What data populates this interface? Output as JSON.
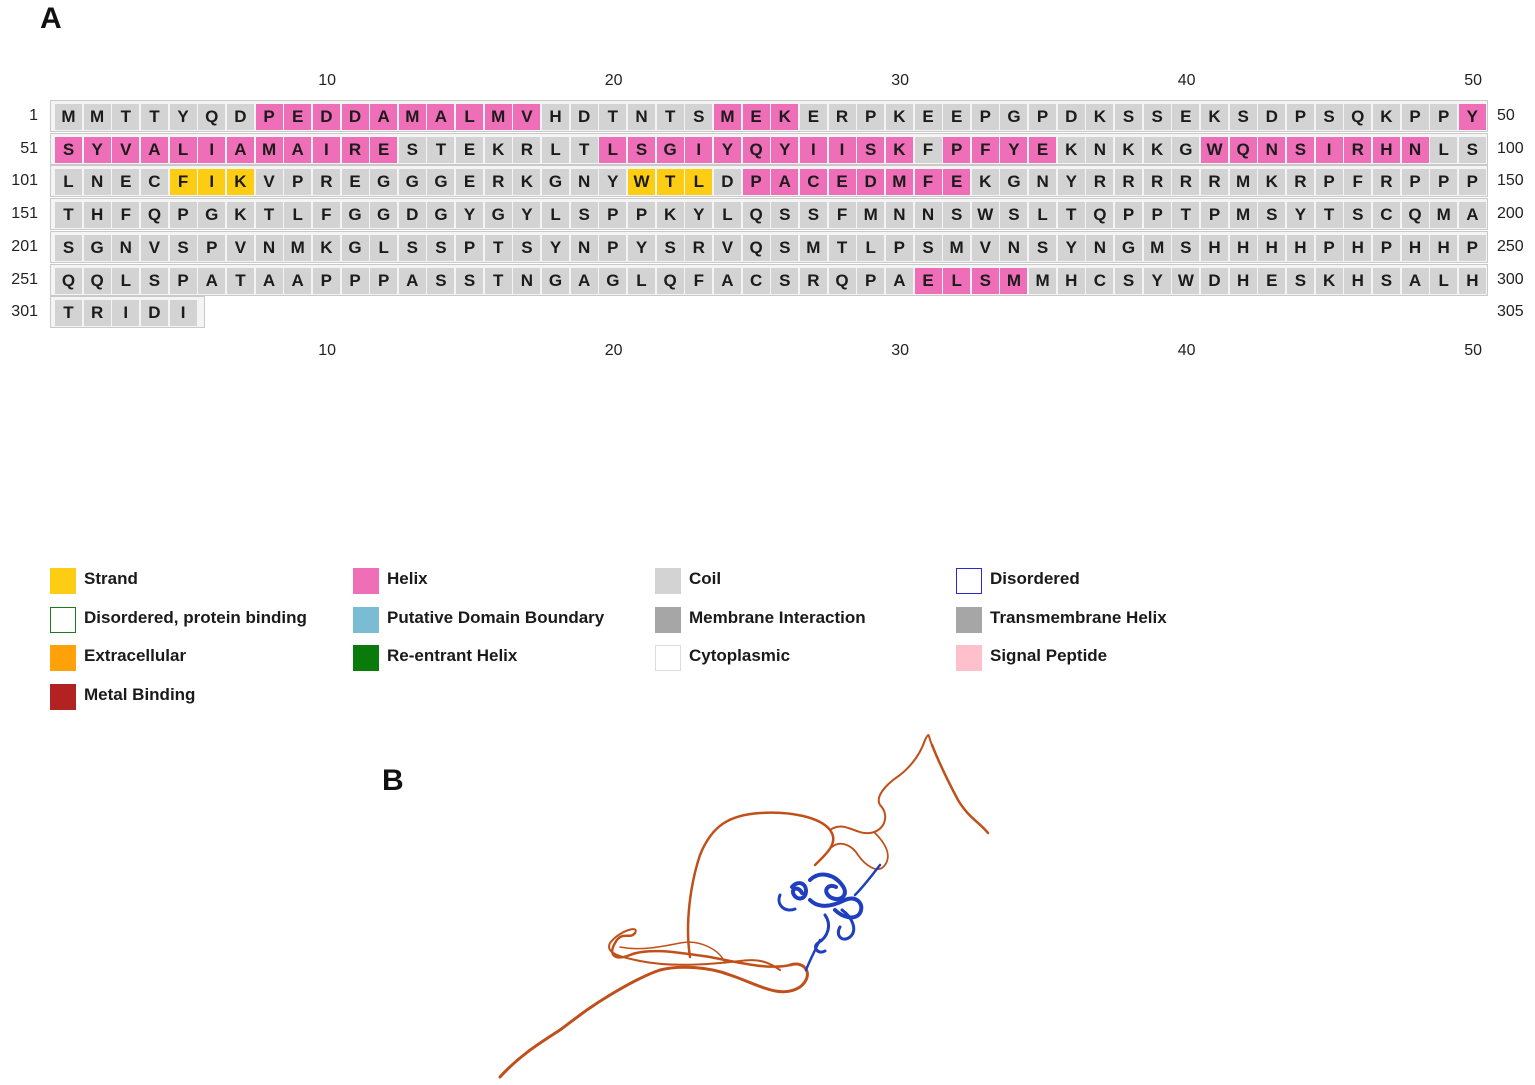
{
  "panel_a_label": "A",
  "panel_b_label": "B",
  "tick_labels": [
    "10",
    "20",
    "30",
    "40",
    "50"
  ],
  "rows": [
    {
      "start": "1",
      "end": "50",
      "seq": "MMTTYQDPEDDAMALMVHDTNTSMEKERPKEEPGPDKSSEKSDPSQKPPY",
      "ss": "CCCCCCCHHHHHHHHHHCCCCCCHHHCCCCCCCCCCCCCCCCCCCCCCCH"
    },
    {
      "start": "51",
      "end": "100",
      "seq": "SYVALIAMAIRESTEKRLTLSGIYQYIISKFPFYEKNKKGWQNSIRHNLS",
      "ss": "HHHHHHHHHHHHCCCCCCCHHHHHHHHHHHCHHHHCCCCCHHHHHHHHCC"
    },
    {
      "start": "101",
      "end": "150",
      "seq": "LNECFIKVPREGGGERKGNYWTLDPACEDMFEKGNYRRRRRMKRPFRPPP",
      "ss": "CCCCSSSCCCCCCCCCCCCCSSSCHHHHHHHHCCCCCCCCCCCCCCCCCC"
    },
    {
      "start": "151",
      "end": "200",
      "seq": "THFQPGKTLFGGDGYGYLSPPKYLQSSFMNNSWSLTQPPTPMSYTSCQMA",
      "ss": "CCCCCCCCCCCCCCCCCCCCCCCCCCCCCCCCCCCCCCCCCCCCCCCCCC"
    },
    {
      "start": "201",
      "end": "250",
      "seq": "SGNVSPVNMKGLSSPTSYNPYSRVQSMTLPSMVNSYNGMSHHHHPHPHHP",
      "ss": "CCCCCCCCCCCCCCCCCCCCCCCCCCCCCCCCCCCCCCCCCCCCCCCCCC"
    },
    {
      "start": "251",
      "end": "300",
      "seq": "QQLSPATAAPPPASSTNGAGLQFACSRQPAELSMMHCSYWDHESKHSALH",
      "ss": "CCCCCCCCCCCCCCCCCCCCCCCCCCCCCCHHHHCCCCCCCCCCCCCCCC"
    },
    {
      "start": "301",
      "end": "305",
      "seq": "TRIDI",
      "ss": "CCCCC"
    }
  ],
  "legend": [
    {
      "label": "Strand",
      "fill": "#fccd12",
      "border": "#fccd12"
    },
    {
      "label": "Helix",
      "fill": "#ee6eb7",
      "border": "#ee6eb7"
    },
    {
      "label": "Coil",
      "fill": "#d3d3d3",
      "border": "#d3d3d3"
    },
    {
      "label": "Disordered",
      "fill": "#ffffff",
      "border": "#2a2ad0"
    },
    {
      "label": "Disordered, protein binding",
      "fill": "#ffffff",
      "border": "#1e7a1e"
    },
    {
      "label": "Putative Domain Boundary",
      "fill": "#79bcd3",
      "border": "#79bcd3"
    },
    {
      "label": "Membrane Interaction",
      "fill": "#a6a6a6",
      "border": "#a6a6a6"
    },
    {
      "label": "Transmembrane Helix",
      "fill": "#a6a6a6",
      "border": "#a6a6a6"
    },
    {
      "label": "Extracellular",
      "fill": "#ffa20a",
      "border": "#ffa20a"
    },
    {
      "label": "Re-entrant Helix",
      "fill": "#0a7a0a",
      "border": "#0a7a0a"
    },
    {
      "label": "Cytoplasmic",
      "fill": "#ffffff",
      "border": "#dcdcdc"
    },
    {
      "label": "Signal Peptide",
      "fill": "#ffc0cb",
      "border": "#ffc0cb"
    },
    {
      "label": "Metal Binding",
      "fill": "#b22222",
      "border": "#b22222"
    }
  ],
  "structure_colors": {
    "disordered": "#c0501a",
    "ordered": "#1f3fc0"
  }
}
